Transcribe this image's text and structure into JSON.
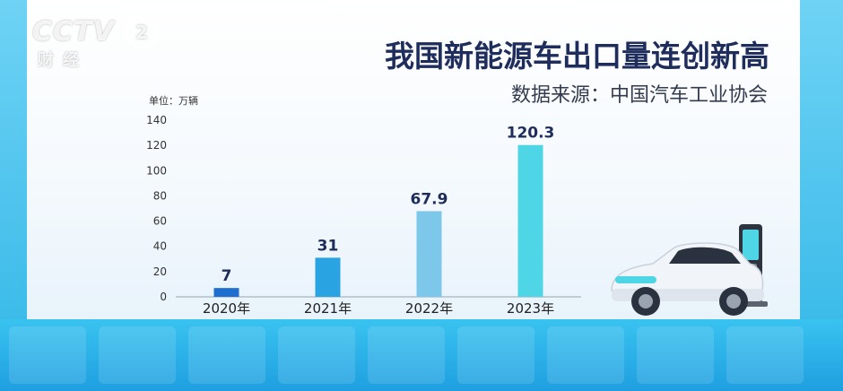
{
  "logo": {
    "brand": "CCTV",
    "channel": "2",
    "sub": "财经"
  },
  "title": "我国新能源车出口量连创新高",
  "subtitle": "数据来源：中国汽车工业协会",
  "unit_label": "单位：万辆",
  "chart_data": {
    "type": "bar",
    "categories": [
      "2020年",
      "2021年",
      "2022年",
      "2023年"
    ],
    "values": [
      7,
      31,
      67.9,
      120.3
    ],
    "data_labels": [
      "7",
      "31",
      "67.9",
      "120.3"
    ],
    "yticks": [
      "0",
      "20",
      "40",
      "60",
      "80",
      "100",
      "120",
      "140"
    ],
    "ylim": [
      0,
      140
    ],
    "bar_colors": [
      "#1f6fd1",
      "#2aa3e3",
      "#7cc7ea",
      "#4fd6e6"
    ],
    "grid": false,
    "legend": "none"
  }
}
